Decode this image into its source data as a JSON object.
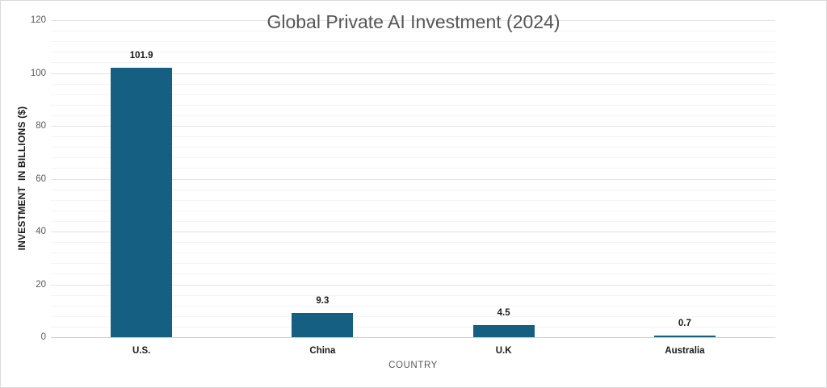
{
  "chart": {
    "title": "Global Private AI Investment (2024)",
    "x_axis_title": "COUNTRY",
    "y_axis_title": "INVESTMENT  IN BILLIONS ($)"
  },
  "chart_data": {
    "type": "bar",
    "title": "Global Private AI Investment (2024)",
    "categories": [
      "U.S.",
      "China",
      "U.K",
      "Australia"
    ],
    "values": [
      101.9,
      9.3,
      4.5,
      0.7
    ],
    "value_labels": [
      "101.9",
      "9.3",
      "4.5",
      "0.7"
    ],
    "xlabel": "COUNTRY",
    "ylabel": "INVESTMENT  IN BILLIONS ($)",
    "ylim": [
      0,
      120
    ],
    "y_ticks": [
      0,
      20,
      40,
      60,
      80,
      100,
      120
    ],
    "y_major_unit": 20,
    "y_minor_unit": 4,
    "grid": "horizontal major + minor",
    "legend": "none",
    "colors": {
      "bar": "#156082",
      "title": "#565656",
      "tick_label": "#595959",
      "axis_title": "#595959",
      "data_label": "#1a1a1a",
      "major_grid": "#e3e3e3",
      "minor_grid": "#f4f4f4",
      "axis_line": "#cfcfcf",
      "border": "#d9d9d9",
      "background": "#ffffff"
    }
  }
}
